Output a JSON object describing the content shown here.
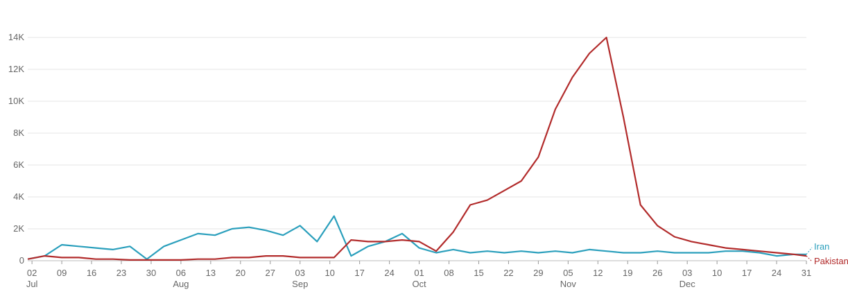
{
  "chart_data": {
    "type": "line",
    "title": "",
    "xlabel": "",
    "ylabel": "",
    "ylim": [
      0,
      16000
    ],
    "yticks": [
      0,
      2000,
      4000,
      6000,
      8000,
      10000,
      12000,
      14000
    ],
    "ytick_labels": [
      "0",
      "2K",
      "4K",
      "6K",
      "8K",
      "10K",
      "12K",
      "14K"
    ],
    "grid": true,
    "x_start": "2022-07-01",
    "x_end": "2022-12-31",
    "xtick_labels": [
      "02",
      "09",
      "16",
      "23",
      "30",
      "06",
      "13",
      "20",
      "27",
      "03",
      "10",
      "17",
      "24",
      "01",
      "08",
      "15",
      "22",
      "29",
      "05",
      "12",
      "19",
      "26",
      "03",
      "10",
      "17",
      "24",
      "31"
    ],
    "month_labels": [
      "Jul",
      "Aug",
      "Sep",
      "Oct",
      "Nov",
      "Dec"
    ],
    "x_keys": [
      "2022-07-01",
      "2022-07-05",
      "2022-07-09",
      "2022-07-13",
      "2022-07-17",
      "2022-07-21",
      "2022-07-25",
      "2022-07-29",
      "2022-08-02",
      "2022-08-06",
      "2022-08-10",
      "2022-08-14",
      "2022-08-18",
      "2022-08-22",
      "2022-08-26",
      "2022-08-30",
      "2022-09-03",
      "2022-09-07",
      "2022-09-11",
      "2022-09-15",
      "2022-09-19",
      "2022-09-23",
      "2022-09-27",
      "2022-10-01",
      "2022-10-05",
      "2022-10-09",
      "2022-10-13",
      "2022-10-17",
      "2022-10-21",
      "2022-10-25",
      "2022-10-29",
      "2022-11-02",
      "2022-11-06",
      "2022-11-10",
      "2022-11-14",
      "2022-11-18",
      "2022-11-22",
      "2022-11-26",
      "2022-11-30",
      "2022-12-04",
      "2022-12-08",
      "2022-12-12",
      "2022-12-16",
      "2022-12-20",
      "2022-12-24",
      "2022-12-28",
      "2022-12-31"
    ],
    "series": [
      {
        "name": "Iran",
        "color": "#2a9fbc",
        "values": [
          100,
          300,
          1000,
          900,
          800,
          700,
          900,
          100,
          900,
          1300,
          1700,
          1600,
          2000,
          2100,
          1900,
          1600,
          2200,
          1200,
          2800,
          300,
          900,
          1200,
          1700,
          800,
          500,
          700,
          500,
          600,
          500,
          600,
          500,
          600,
          500,
          700,
          600,
          500,
          500,
          600,
          500,
          500,
          500,
          600,
          600,
          500,
          300,
          400,
          400
        ]
      },
      {
        "name": "Pakistan",
        "color": "#b22b2b",
        "values": [
          100,
          300,
          200,
          200,
          100,
          100,
          50,
          50,
          50,
          50,
          100,
          100,
          200,
          200,
          300,
          300,
          200,
          200,
          200,
          1300,
          1200,
          1200,
          1300,
          1200,
          600,
          1800,
          3500,
          3800,
          4400,
          5000,
          6500,
          9500,
          11500,
          13000,
          14000,
          9000,
          3500,
          2200,
          1500,
          1200,
          1000,
          800,
          700,
          600,
          500,
          400,
          300
        ]
      }
    ]
  }
}
